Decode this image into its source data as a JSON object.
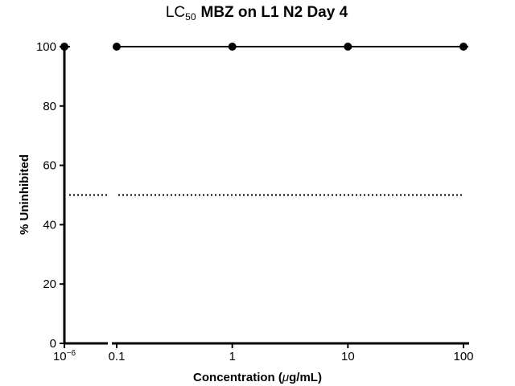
{
  "chart_data": {
    "type": "line",
    "title": {
      "prefix": "LC",
      "subscript": "50",
      "rest": "MBZ on L1 N2 Day 4"
    },
    "xlabel": {
      "prefix": "Concentration (",
      "mu": "μ",
      "suffix": "g/mL)"
    },
    "ylabel": "% Uninhibited",
    "x_scale": "log, segmented (broken axis between 10^-6 and 0.1)",
    "x_tick_labels": [
      {
        "value": 1e-06,
        "base": "10",
        "exp": "−6"
      },
      {
        "value": 0.1,
        "label": "0.1"
      },
      {
        "value": 1,
        "label": "1"
      },
      {
        "value": 10,
        "label": "10"
      },
      {
        "value": 100,
        "label": "100"
      }
    ],
    "y_ticks": [
      0,
      20,
      40,
      60,
      80,
      100
    ],
    "ylim": [
      0,
      100
    ],
    "series": [
      {
        "points": [
          {
            "x": 1e-06,
            "y": 100
          },
          {
            "x": 0.1,
            "y": 100
          },
          {
            "x": 1,
            "y": 100
          },
          {
            "x": 10,
            "y": 100
          },
          {
            "x": 100,
            "y": 100
          }
        ]
      }
    ],
    "reference_line": {
      "y": 50,
      "style": "dotted"
    },
    "grid": false,
    "colors": {
      "line": "#000000",
      "marker": "#000000",
      "axis": "#000000"
    }
  }
}
